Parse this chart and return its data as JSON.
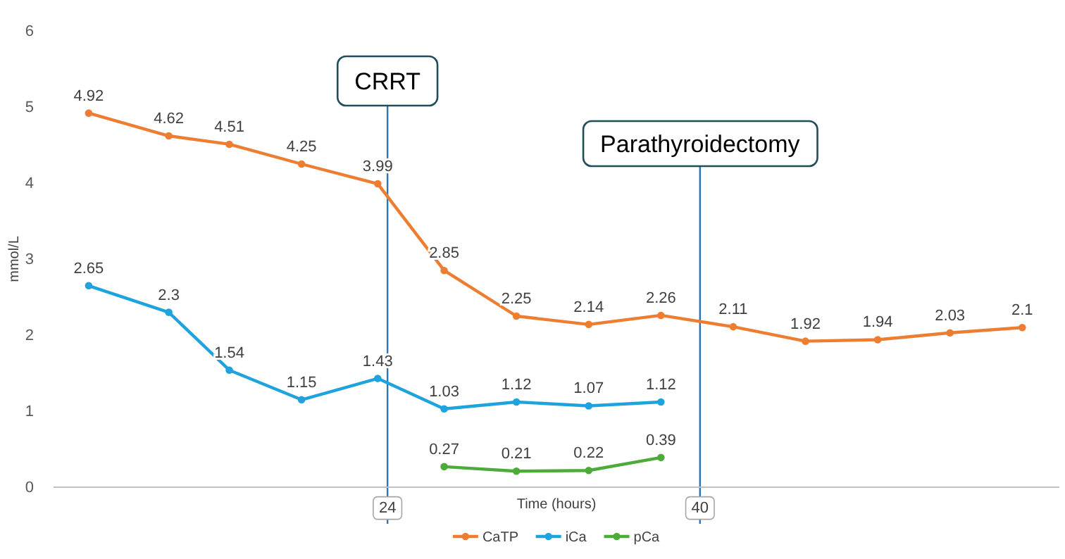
{
  "chart_data": {
    "type": "line",
    "xlabel": "Time (hours)",
    "ylabel": "mmol/L",
    "xlim": [
      6.9,
      58.4
    ],
    "xticks": [
      24,
      40
    ],
    "ylim": [
      0,
      6
    ],
    "yticks": [
      0,
      1,
      2,
      3,
      4,
      5,
      6
    ],
    "grid": false,
    "legend": "bottom",
    "marker": "circle",
    "line_style": "solid",
    "data_labels": true,
    "series": [
      {
        "name": "CaTP",
        "color": "#ed7d31",
        "x": [
          8.7,
          12.8,
          15.9,
          19.6,
          23.5,
          26.9,
          30.6,
          34.3,
          38.0,
          41.7,
          45.4,
          49.1,
          52.8,
          56.5
        ],
        "values": [
          4.92,
          4.62,
          4.51,
          4.25,
          3.99,
          2.85,
          2.25,
          2.14,
          2.26,
          2.11,
          1.92,
          1.94,
          2.03,
          2.1
        ]
      },
      {
        "name": "iCa",
        "color": "#1fa3dc",
        "x": [
          8.7,
          12.8,
          15.9,
          19.6,
          23.5,
          26.9,
          30.6,
          34.3,
          38.0
        ],
        "values": [
          2.65,
          2.3,
          1.54,
          1.15,
          1.43,
          1.03,
          1.12,
          1.07,
          1.12
        ]
      },
      {
        "name": "pCa",
        "color": "#4dab3a",
        "x": [
          26.9,
          30.6,
          34.3,
          38.0
        ],
        "values": [
          0.27,
          0.21,
          0.22,
          0.39
        ]
      }
    ],
    "ref_lines": [
      {
        "axis": "x",
        "value": 24,
        "label": "CRRT",
        "color": "#2e75b6"
      },
      {
        "axis": "x",
        "value": 40,
        "label": "Parathyroidectomy",
        "color": "#2e75b6"
      }
    ]
  }
}
